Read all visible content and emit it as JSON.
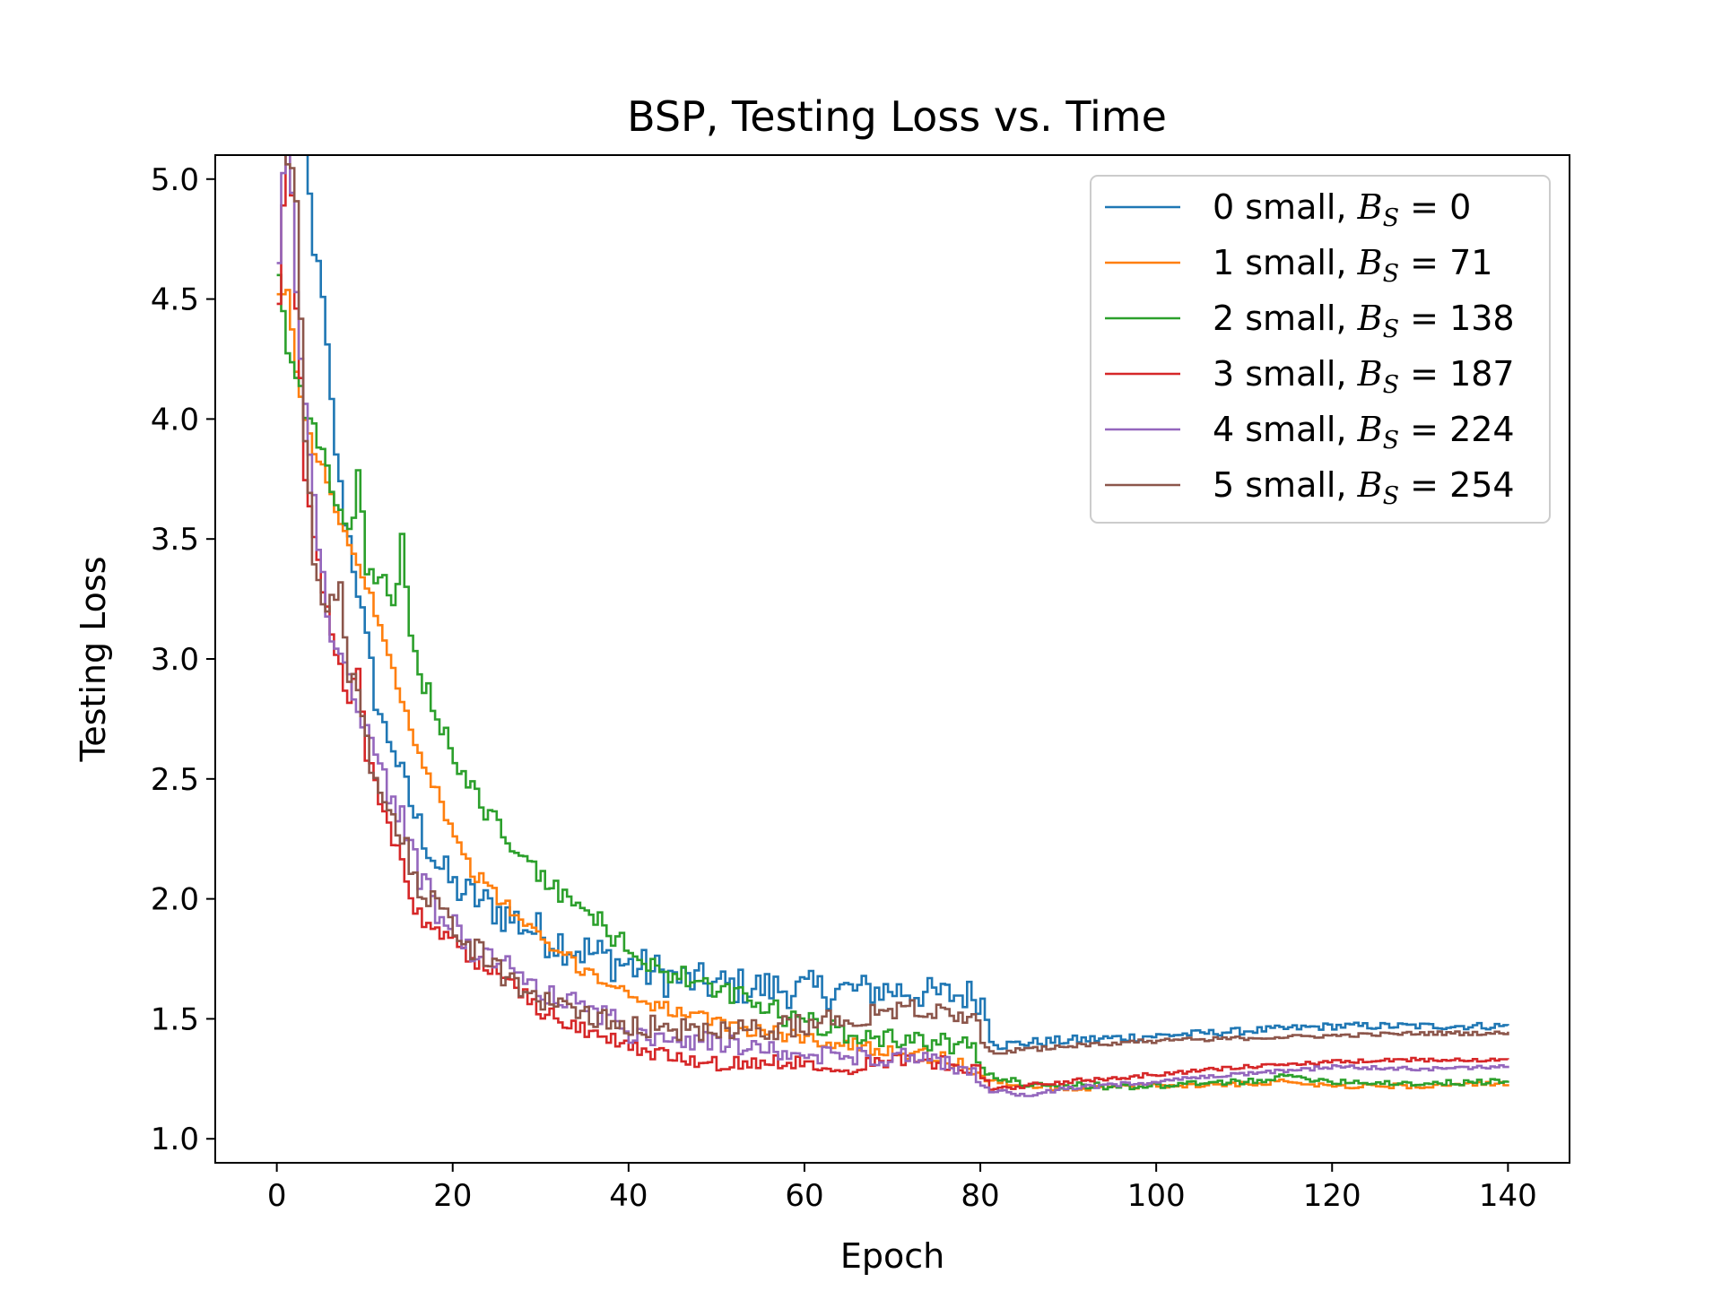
{
  "chart_data": {
    "type": "line",
    "title": "BSP, Testing Loss vs. Time",
    "xlabel": "Epoch",
    "ylabel": "Testing Loss",
    "xlim": [
      -7,
      147
    ],
    "ylim": [
      0.9,
      5.1
    ],
    "xticks": [
      0,
      20,
      40,
      60,
      80,
      100,
      120,
      140
    ],
    "yticks": [
      1.0,
      1.5,
      2.0,
      2.5,
      3.0,
      3.5,
      4.0,
      4.5,
      5.0
    ],
    "xtick_labels": [
      "0",
      "20",
      "40",
      "60",
      "80",
      "100",
      "120",
      "140"
    ],
    "ytick_labels": [
      "1.0",
      "1.5",
      "2.0",
      "2.5",
      "3.0",
      "3.5",
      "4.0",
      "4.5",
      "5.0"
    ],
    "grid": false,
    "legend_position": "top-right",
    "step": true,
    "x_step": 0.5,
    "series": [
      {
        "name": "0 small, B_S = 0",
        "legend_prefix": "0 small, ",
        "legend_math": "B",
        "legend_sub": "S",
        "legend_suffix": " = 0",
        "color": "#1f77b4",
        "keypoints": [
          [
            0,
            6.5
          ],
          [
            2,
            5.6
          ],
          [
            3,
            5.1
          ],
          [
            4,
            4.73
          ],
          [
            5,
            4.48
          ],
          [
            6,
            4.05
          ],
          [
            7,
            3.7
          ],
          [
            8,
            3.5
          ],
          [
            9,
            3.3
          ],
          [
            10,
            3.05
          ],
          [
            11,
            2.85
          ],
          [
            12,
            2.7
          ],
          [
            13,
            2.65
          ],
          [
            14,
            2.5
          ],
          [
            16,
            2.3
          ],
          [
            18,
            2.15
          ],
          [
            20,
            2.05
          ],
          [
            25,
            1.95
          ],
          [
            30,
            1.85
          ],
          [
            35,
            1.78
          ],
          [
            40,
            1.72
          ],
          [
            45,
            1.67
          ],
          [
            50,
            1.64
          ],
          [
            55,
            1.63
          ],
          [
            60,
            1.62
          ],
          [
            65,
            1.62
          ],
          [
            70,
            1.62
          ],
          [
            75,
            1.6
          ],
          [
            79,
            1.6
          ],
          [
            80,
            1.58
          ],
          [
            81,
            1.42
          ],
          [
            82,
            1.39
          ],
          [
            85,
            1.4
          ],
          [
            90,
            1.41
          ],
          [
            100,
            1.43
          ],
          [
            110,
            1.45
          ],
          [
            120,
            1.47
          ],
          [
            130,
            1.47
          ],
          [
            140,
            1.47
          ]
        ],
        "noise": [
          0.07,
          0.08,
          0.09,
          0.08,
          0.07,
          0.02,
          0.015
        ]
      },
      {
        "name": "1 small, B_S = 71",
        "legend_prefix": "1 small, ",
        "legend_math": "B",
        "legend_sub": "S",
        "legend_suffix": " = 71",
        "color": "#ff7f0e",
        "keypoints": [
          [
            0,
            4.52
          ],
          [
            1,
            4.52
          ],
          [
            2,
            4.2
          ],
          [
            3,
            4.0
          ],
          [
            4,
            3.85
          ],
          [
            5,
            3.8
          ],
          [
            6,
            3.7
          ],
          [
            7,
            3.55
          ],
          [
            8,
            3.48
          ],
          [
            9,
            3.4
          ],
          [
            10,
            3.3
          ],
          [
            11,
            3.2
          ],
          [
            12,
            3.1
          ],
          [
            13,
            2.95
          ],
          [
            14,
            2.85
          ],
          [
            15,
            2.72
          ],
          [
            16,
            2.6
          ],
          [
            18,
            2.45
          ],
          [
            20,
            2.25
          ],
          [
            22,
            2.12
          ],
          [
            25,
            2.0
          ],
          [
            28,
            1.9
          ],
          [
            30,
            1.82
          ],
          [
            35,
            1.7
          ],
          [
            40,
            1.6
          ],
          [
            45,
            1.53
          ],
          [
            50,
            1.48
          ],
          [
            55,
            1.45
          ],
          [
            60,
            1.42
          ],
          [
            65,
            1.39
          ],
          [
            70,
            1.37
          ],
          [
            75,
            1.34
          ],
          [
            79,
            1.29
          ],
          [
            80,
            1.26
          ],
          [
            81,
            1.24
          ],
          [
            85,
            1.22
          ],
          [
            90,
            1.21
          ],
          [
            100,
            1.22
          ],
          [
            110,
            1.23
          ],
          [
            115,
            1.24
          ],
          [
            120,
            1.22
          ],
          [
            130,
            1.22
          ],
          [
            140,
            1.23
          ]
        ],
        "noise": [
          0.02,
          0.03,
          0.03,
          0.03,
          0.03,
          0.012,
          0.01
        ]
      },
      {
        "name": "2 small, B_S = 138",
        "legend_prefix": "2 small, ",
        "legend_math": "B",
        "legend_sub": "S",
        "legend_suffix": " = 138",
        "color": "#2ca02c",
        "keypoints": [
          [
            0,
            4.6
          ],
          [
            1,
            4.3
          ],
          [
            2,
            4.2
          ],
          [
            3,
            4.05
          ],
          [
            4,
            3.95
          ],
          [
            5,
            3.88
          ],
          [
            6,
            3.7
          ],
          [
            7,
            3.6
          ],
          [
            8,
            3.5
          ],
          [
            9,
            3.77
          ],
          [
            10,
            3.4
          ],
          [
            11,
            3.35
          ],
          [
            12,
            3.3
          ],
          [
            13,
            3.2
          ],
          [
            14,
            3.5
          ],
          [
            15,
            3.05
          ],
          [
            16,
            2.92
          ],
          [
            18,
            2.78
          ],
          [
            20,
            2.6
          ],
          [
            22,
            2.45
          ],
          [
            25,
            2.3
          ],
          [
            28,
            2.15
          ],
          [
            30,
            2.08
          ],
          [
            35,
            1.95
          ],
          [
            40,
            1.78
          ],
          [
            45,
            1.68
          ],
          [
            50,
            1.62
          ],
          [
            55,
            1.55
          ],
          [
            60,
            1.48
          ],
          [
            65,
            1.44
          ],
          [
            70,
            1.42
          ],
          [
            75,
            1.4
          ],
          [
            79,
            1.38
          ],
          [
            80,
            1.3
          ],
          [
            81,
            1.26
          ],
          [
            85,
            1.23
          ],
          [
            90,
            1.22
          ],
          [
            100,
            1.22
          ],
          [
            110,
            1.24
          ],
          [
            115,
            1.26
          ],
          [
            120,
            1.24
          ],
          [
            130,
            1.23
          ],
          [
            140,
            1.24
          ]
        ],
        "noise": [
          0.05,
          0.05,
          0.05,
          0.05,
          0.04,
          0.015,
          0.012
        ]
      },
      {
        "name": "3 small, B_S = 187",
        "legend_prefix": "3 small, ",
        "legend_math": "B",
        "legend_sub": "S",
        "legend_suffix": " = 187",
        "color": "#d62728",
        "keypoints": [
          [
            0,
            4.48
          ],
          [
            1,
            5.3
          ],
          [
            2,
            4.5
          ],
          [
            3,
            3.77
          ],
          [
            4,
            3.5
          ],
          [
            5,
            3.3
          ],
          [
            6,
            3.1
          ],
          [
            7,
            2.98
          ],
          [
            8,
            2.8
          ],
          [
            9,
            2.98
          ],
          [
            10,
            2.6
          ],
          [
            11,
            2.5
          ],
          [
            12,
            2.35
          ],
          [
            13,
            2.25
          ],
          [
            14,
            2.15
          ],
          [
            15,
            2.0
          ],
          [
            16,
            1.92
          ],
          [
            18,
            1.87
          ],
          [
            20,
            1.82
          ],
          [
            22,
            1.75
          ],
          [
            25,
            1.68
          ],
          [
            28,
            1.6
          ],
          [
            30,
            1.53
          ],
          [
            35,
            1.45
          ],
          [
            40,
            1.38
          ],
          [
            45,
            1.34
          ],
          [
            50,
            1.31
          ],
          [
            55,
            1.32
          ],
          [
            60,
            1.32
          ],
          [
            65,
            1.3
          ],
          [
            70,
            1.33
          ],
          [
            75,
            1.32
          ],
          [
            79,
            1.3
          ],
          [
            80,
            1.26
          ],
          [
            81,
            1.21
          ],
          [
            85,
            1.22
          ],
          [
            90,
            1.24
          ],
          [
            100,
            1.27
          ],
          [
            110,
            1.3
          ],
          [
            120,
            1.32
          ],
          [
            130,
            1.33
          ],
          [
            140,
            1.33
          ]
        ],
        "noise": [
          0.04,
          0.04,
          0.03,
          0.03,
          0.03,
          0.01,
          0.008
        ]
      },
      {
        "name": "4 small, B_S = 224",
        "legend_prefix": "4 small, ",
        "legend_math": "B",
        "legend_sub": "S",
        "legend_suffix": " = 224",
        "color": "#9467bd",
        "keypoints": [
          [
            0,
            4.65
          ],
          [
            1,
            5.4
          ],
          [
            2,
            4.5
          ],
          [
            3,
            4.05
          ],
          [
            4,
            3.65
          ],
          [
            5,
            3.35
          ],
          [
            6,
            3.05
          ],
          [
            7,
            3.05
          ],
          [
            8,
            2.9
          ],
          [
            9,
            2.8
          ],
          [
            10,
            2.7
          ],
          [
            11,
            2.6
          ],
          [
            12,
            2.5
          ],
          [
            13,
            2.4
          ],
          [
            14,
            2.35
          ],
          [
            15,
            2.2
          ],
          [
            16,
            2.1
          ],
          [
            18,
            1.95
          ],
          [
            20,
            1.88
          ],
          [
            22,
            1.8
          ],
          [
            25,
            1.75
          ],
          [
            28,
            1.68
          ],
          [
            30,
            1.6
          ],
          [
            35,
            1.55
          ],
          [
            40,
            1.45
          ],
          [
            45,
            1.42
          ],
          [
            50,
            1.4
          ],
          [
            55,
            1.37
          ],
          [
            60,
            1.35
          ],
          [
            65,
            1.35
          ],
          [
            70,
            1.34
          ],
          [
            75,
            1.32
          ],
          [
            79,
            1.28
          ],
          [
            80,
            1.23
          ],
          [
            81,
            1.2
          ],
          [
            85,
            1.18
          ],
          [
            90,
            1.21
          ],
          [
            100,
            1.24
          ],
          [
            110,
            1.27
          ],
          [
            120,
            1.3
          ],
          [
            130,
            1.29
          ],
          [
            140,
            1.3
          ]
        ],
        "noise": [
          0.05,
          0.06,
          0.05,
          0.04,
          0.04,
          0.01,
          0.008
        ]
      },
      {
        "name": "5 small, B_S = 254",
        "legend_prefix": "5 small, ",
        "legend_math": "B",
        "legend_sub": "S",
        "legend_suffix": " = 254",
        "color": "#8c564b",
        "keypoints": [
          [
            0,
            5.3
          ],
          [
            1,
            5.1
          ],
          [
            2,
            4.9
          ],
          [
            3,
            3.92
          ],
          [
            4,
            3.42
          ],
          [
            5,
            3.22
          ],
          [
            6,
            3.25
          ],
          [
            7,
            3.32
          ],
          [
            8,
            2.95
          ],
          [
            9,
            2.85
          ],
          [
            10,
            2.65
          ],
          [
            11,
            2.45
          ],
          [
            12,
            2.4
          ],
          [
            13,
            2.35
          ],
          [
            14,
            2.25
          ],
          [
            15,
            2.15
          ],
          [
            16,
            2.05
          ],
          [
            18,
            1.98
          ],
          [
            20,
            1.9
          ],
          [
            22,
            1.8
          ],
          [
            25,
            1.7
          ],
          [
            28,
            1.62
          ],
          [
            30,
            1.58
          ],
          [
            35,
            1.52
          ],
          [
            40,
            1.48
          ],
          [
            45,
            1.46
          ],
          [
            50,
            1.45
          ],
          [
            55,
            1.45
          ],
          [
            60,
            1.48
          ],
          [
            65,
            1.5
          ],
          [
            70,
            1.55
          ],
          [
            75,
            1.55
          ],
          [
            79,
            1.5
          ],
          [
            80,
            1.4
          ],
          [
            81,
            1.36
          ],
          [
            85,
            1.37
          ],
          [
            90,
            1.39
          ],
          [
            100,
            1.41
          ],
          [
            110,
            1.42
          ],
          [
            120,
            1.43
          ],
          [
            130,
            1.44
          ],
          [
            140,
            1.44
          ]
        ],
        "noise": [
          0.05,
          0.06,
          0.05,
          0.05,
          0.05,
          0.01,
          0.008
        ]
      }
    ]
  }
}
